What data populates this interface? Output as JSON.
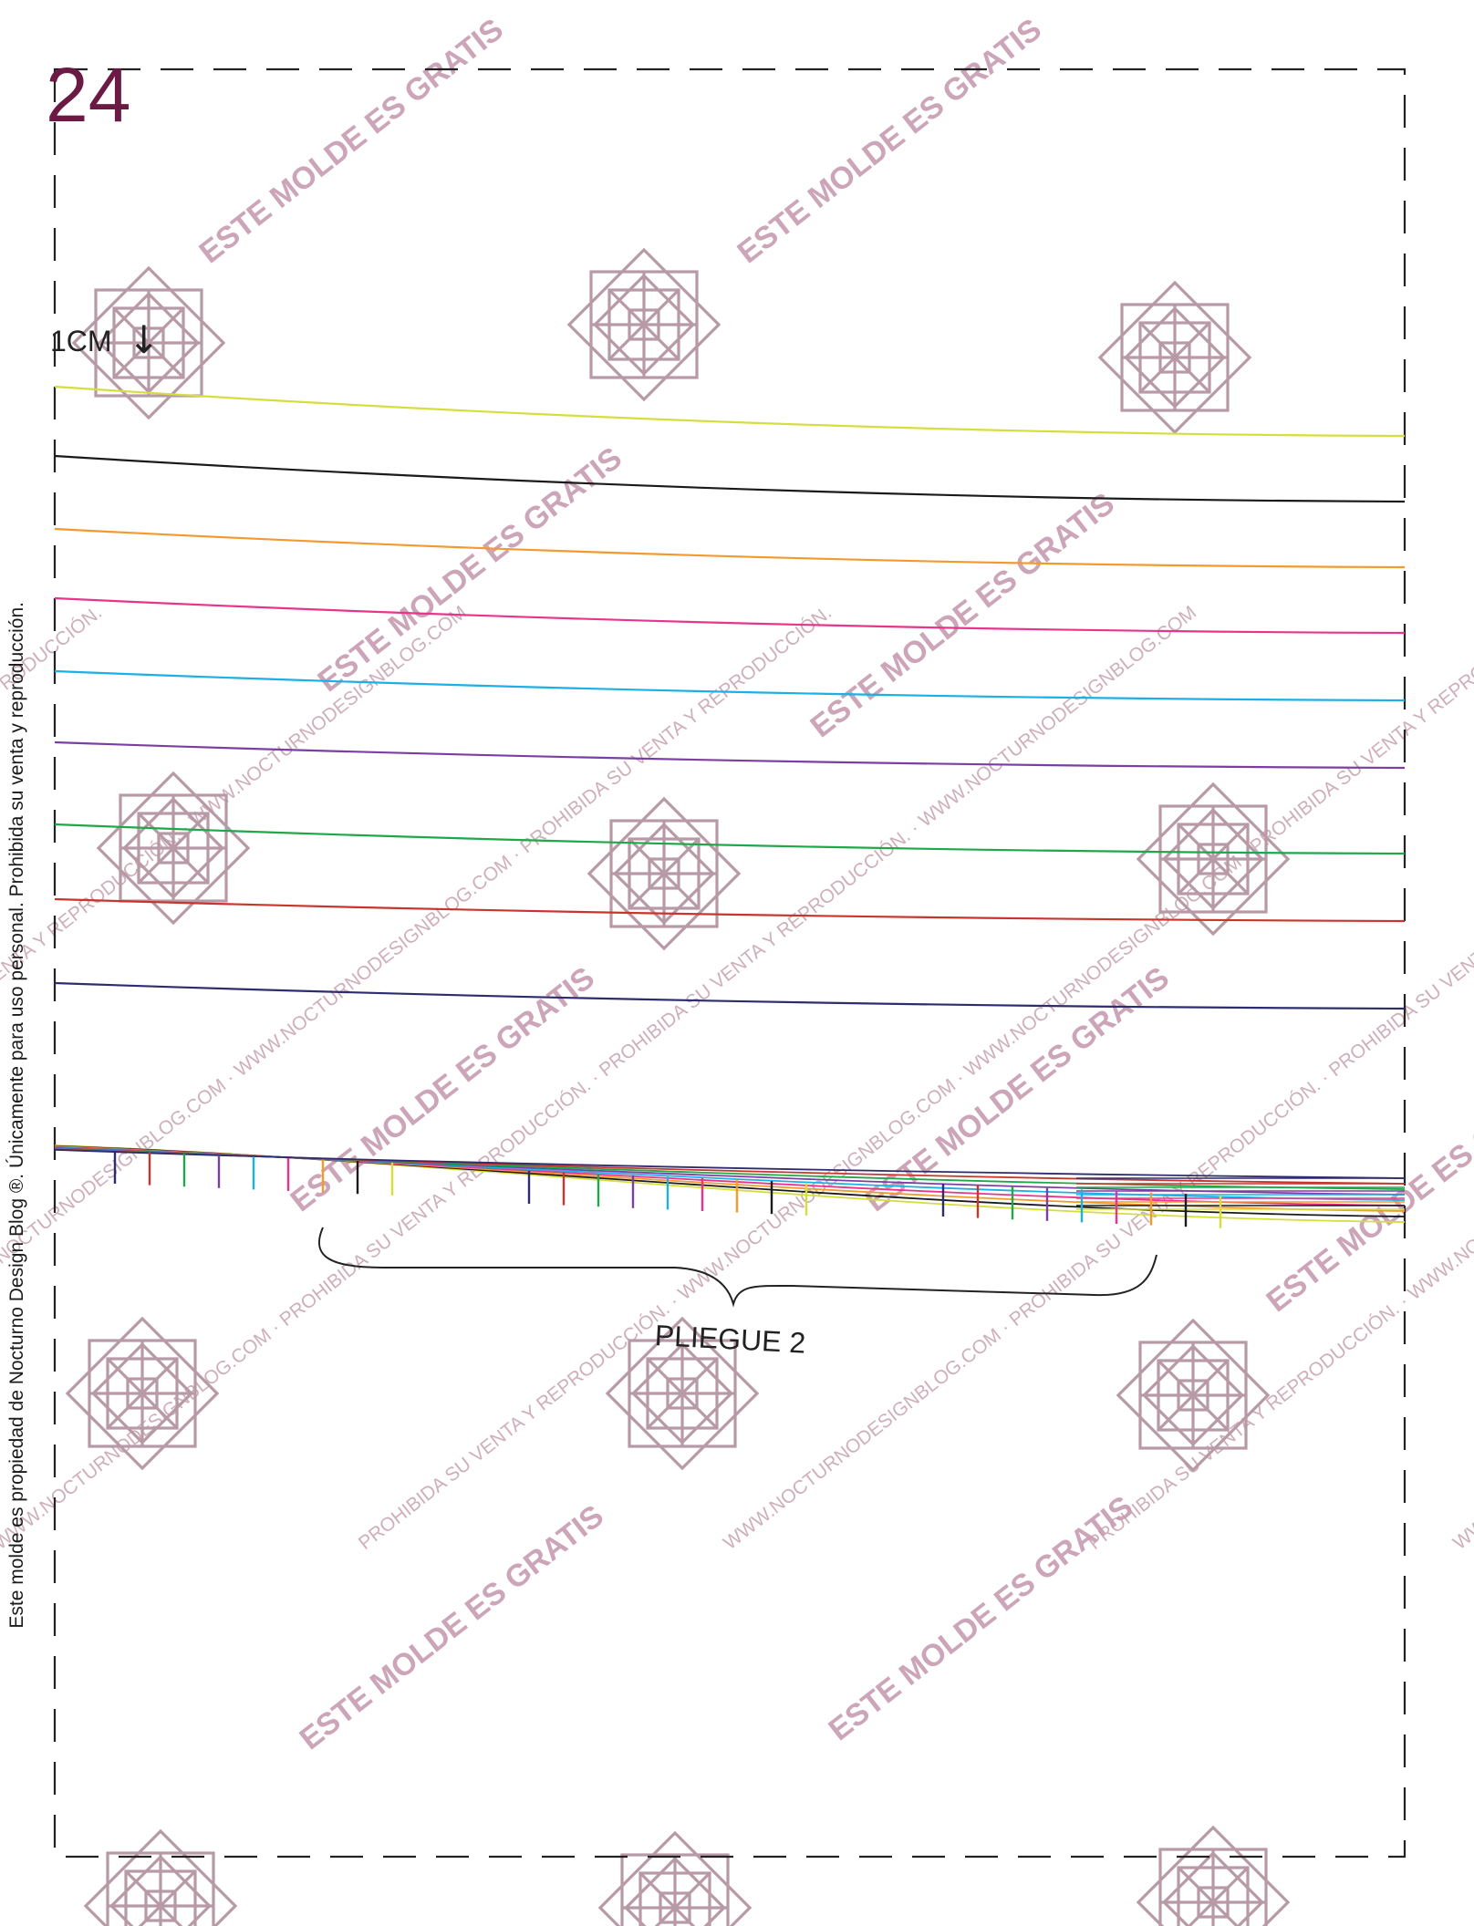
{
  "page_number": "24",
  "side_note": "Este molde es propiedad de Nocturno Design Blog ®. Únicamente para uso personal. Prohibida su venta y reproducción.",
  "measure_label": "1CM",
  "fold_label": "PLIEGUE 2",
  "watermark": {
    "site": "WWW.NOCTURNODESIGNBLOG.COM",
    "prohibited": "PROHIBIDA SU VENTA Y REPRODUCCIÓN.",
    "free": "ESTE MOLDE ES GRATIS"
  },
  "colors": {
    "page_number": "#6a1a43",
    "size_lines": [
      "#d4de3c",
      "#1a1a1a",
      "#f39a2e",
      "#e8358c",
      "#1bb0e6",
      "#7b3fa3",
      "#1fa84a",
      "#c8352c",
      "#2d2c6e"
    ],
    "watermark_text": "#c9a6b3",
    "watermark_logo": "#b89aa6"
  },
  "icons": [
    "down-arrow-icon",
    "brace-icon",
    "watermark-logo-icon"
  ]
}
